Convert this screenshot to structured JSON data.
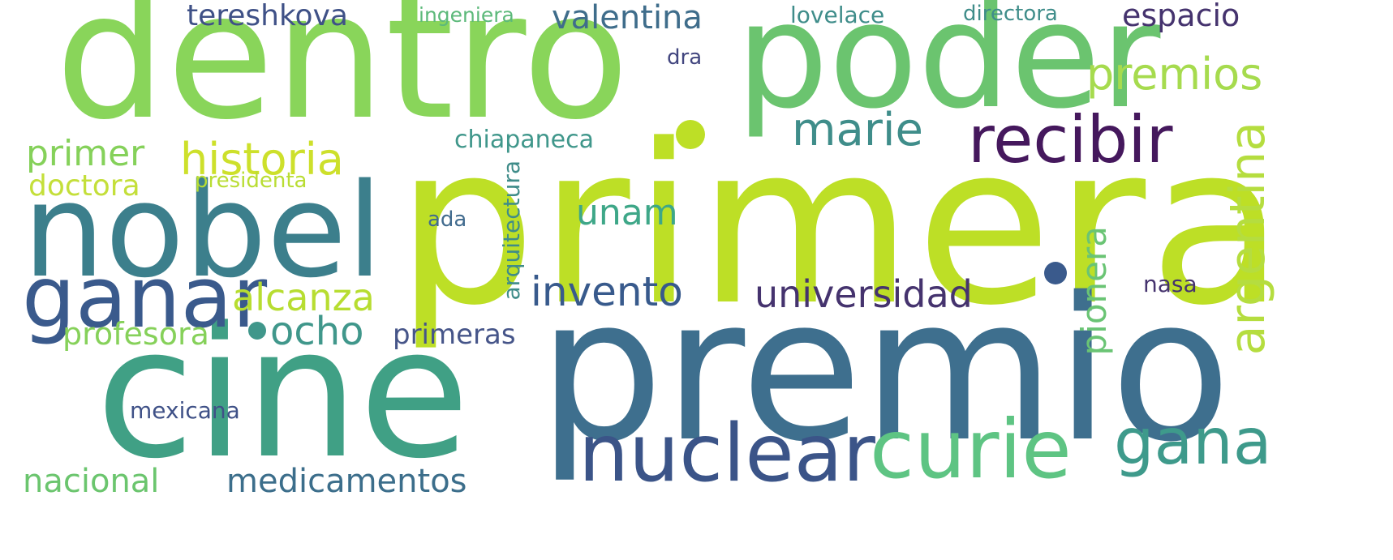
{
  "words": [
    {
      "text": "primera",
      "color": "#bddf26"
    },
    {
      "text": "premio",
      "color": "#3e6f8e"
    },
    {
      "text": "cine",
      "color": "#40a085"
    },
    {
      "text": "dentro",
      "color": "#89d55a"
    },
    {
      "text": "poder",
      "color": "#6bc46f"
    },
    {
      "text": "nobel",
      "color": "#3c7f8c"
    },
    {
      "text": "ganar",
      "color": "#3a5a8c"
    },
    {
      "text": "nuclear",
      "color": "#3b5488"
    },
    {
      "text": "curie",
      "color": "#5ec483"
    },
    {
      "text": "gana",
      "color": "#3e9a8b"
    },
    {
      "text": "recibir",
      "color": "#45185d"
    },
    {
      "text": "marie",
      "color": "#3f8d8a"
    },
    {
      "text": "premios",
      "color": "#a6db4e"
    },
    {
      "text": "historia",
      "color": "#cde02b"
    },
    {
      "text": "primer",
      "color": "#85d15a"
    },
    {
      "text": "doctora",
      "color": "#c4df3a"
    },
    {
      "text": "argentina",
      "color": "#b5dd3f"
    },
    {
      "text": "pionera",
      "color": "#6ac474"
    },
    {
      "text": "unam",
      "color": "#3ea788"
    },
    {
      "text": "invento",
      "color": "#385a8c"
    },
    {
      "text": "universidad",
      "color": "#45336e"
    },
    {
      "text": "alcanza",
      "color": "#b7dd31"
    },
    {
      "text": "profesora",
      "color": "#86d15a"
    },
    {
      "text": "ocho",
      "color": "#40978b"
    },
    {
      "text": "primeras",
      "color": "#465589"
    },
    {
      "text": "medicamentos",
      "color": "#3c6e8b"
    },
    {
      "text": "nacional",
      "color": "#6bc56e"
    },
    {
      "text": "tereshkova",
      "color": "#3f5187"
    },
    {
      "text": "valentina",
      "color": "#3f6d8b"
    },
    {
      "text": "espacio",
      "color": "#45336e"
    },
    {
      "text": "ingeniera",
      "color": "#5cb97a"
    },
    {
      "text": "lovelace",
      "color": "#3f8d8a"
    },
    {
      "text": "directora",
      "color": "#3f8d8a"
    },
    {
      "text": "dra",
      "color": "#42467f"
    },
    {
      "text": "chiapaneca",
      "color": "#40978b"
    },
    {
      "text": "presidenta",
      "color": "#b9dd33"
    },
    {
      "text": "ada",
      "color": "#416b8e"
    },
    {
      "text": "arquitectura",
      "color": "#3f8c89"
    },
    {
      "text": "nasa",
      "color": "#45336e"
    },
    {
      "text": "mexicana",
      "color": "#3f5187"
    }
  ]
}
